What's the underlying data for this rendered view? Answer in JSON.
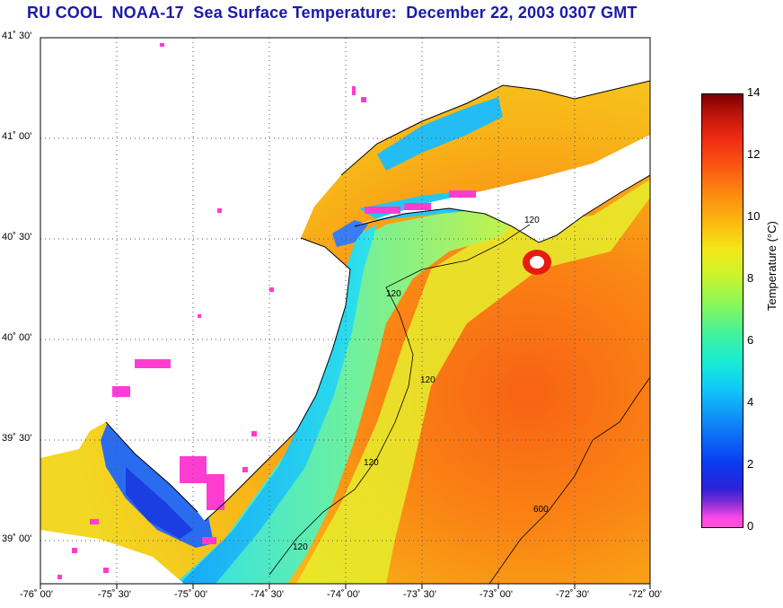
{
  "title": "RU COOL  NOAA-17  Sea Surface Temperature:  December 22, 2003 0307 GMT",
  "lat_labels": [
    "41˚ 30'",
    "41˚ 00'",
    "40˚ 30'",
    "40˚ 00'",
    "39˚ 30'",
    "39˚ 00'"
  ],
  "lon_labels": [
    "-76˚ 00'",
    "-75˚ 30'",
    "-75˚ 00'",
    "-74˚ 30'",
    "-74˚ 00'",
    "-73˚ 30'",
    "-73˚ 00'",
    "-72˚ 30'",
    "-72˚ 00'"
  ],
  "colorbar": {
    "label": "Temperature (°C)",
    "ticks": [
      "14",
      "12",
      "10",
      "8",
      "6",
      "4",
      "2",
      "0"
    ],
    "range": [
      0,
      14
    ]
  },
  "contour_labels": [
    "120",
    "120",
    "120",
    "120",
    "120",
    "600"
  ],
  "colors": {
    "title": "#1a1aa8",
    "land": "#ffffff",
    "cloud_mask": "#ff3cd2",
    "gridlines": "#555555"
  }
}
